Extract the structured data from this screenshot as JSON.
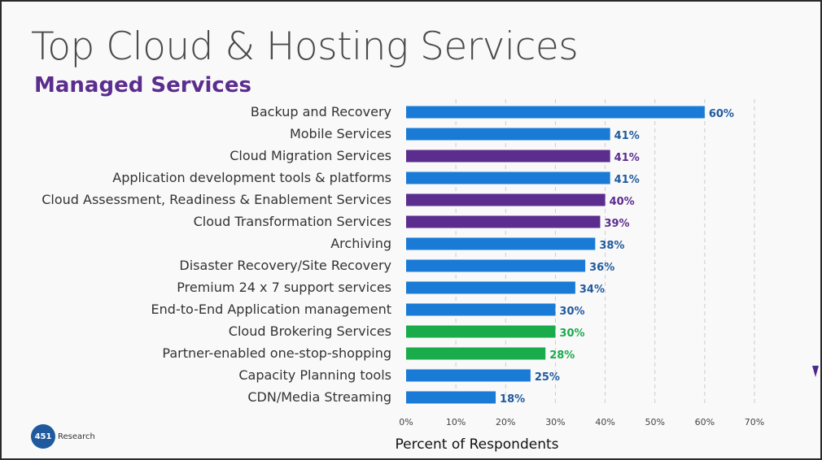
{
  "slide": {
    "title": "Top Cloud & Hosting Services",
    "subtitle": "Managed Services"
  },
  "logo": {
    "badge": "451",
    "name": "Research"
  },
  "colors": {
    "blue": "#1a7bd6",
    "purple": "#5b2d8e",
    "green": "#1aab4b",
    "blue_label": "#1f5a9e"
  },
  "chart_data": {
    "type": "bar",
    "orientation": "horizontal",
    "categories": [
      "Backup and Recovery",
      "Mobile Services",
      "Cloud Migration Services",
      "Application development tools & platforms",
      "Cloud Assessment, Readiness & Enablement Services",
      "Cloud Transformation Services",
      "Archiving",
      "Disaster Recovery/Site Recovery",
      "Premium 24 x 7 support services",
      "End-to-End Application management",
      "Cloud Brokering Services",
      "Partner-enabled one-stop-shopping",
      "Capacity Planning tools",
      "CDN/Media Streaming"
    ],
    "values": [
      60,
      41,
      41,
      41,
      40,
      39,
      38,
      36,
      34,
      30,
      30,
      28,
      25,
      18
    ],
    "value_labels": [
      "60%",
      "41%",
      "41%",
      "41%",
      "40%",
      "39%",
      "38%",
      "36%",
      "34%",
      "30%",
      "30%",
      "28%",
      "25%",
      "18%"
    ],
    "bar_colors": [
      "blue",
      "blue",
      "purple",
      "blue",
      "purple",
      "purple",
      "blue",
      "blue",
      "blue",
      "blue",
      "green",
      "green",
      "blue",
      "blue"
    ],
    "xlabel": "Percent of Respondents",
    "xlim": [
      0,
      70
    ],
    "xticks": [
      "0%",
      "10%",
      "20%",
      "30%",
      "40%",
      "50%",
      "60%",
      "70%"
    ],
    "grid": "vertical-dashed"
  }
}
